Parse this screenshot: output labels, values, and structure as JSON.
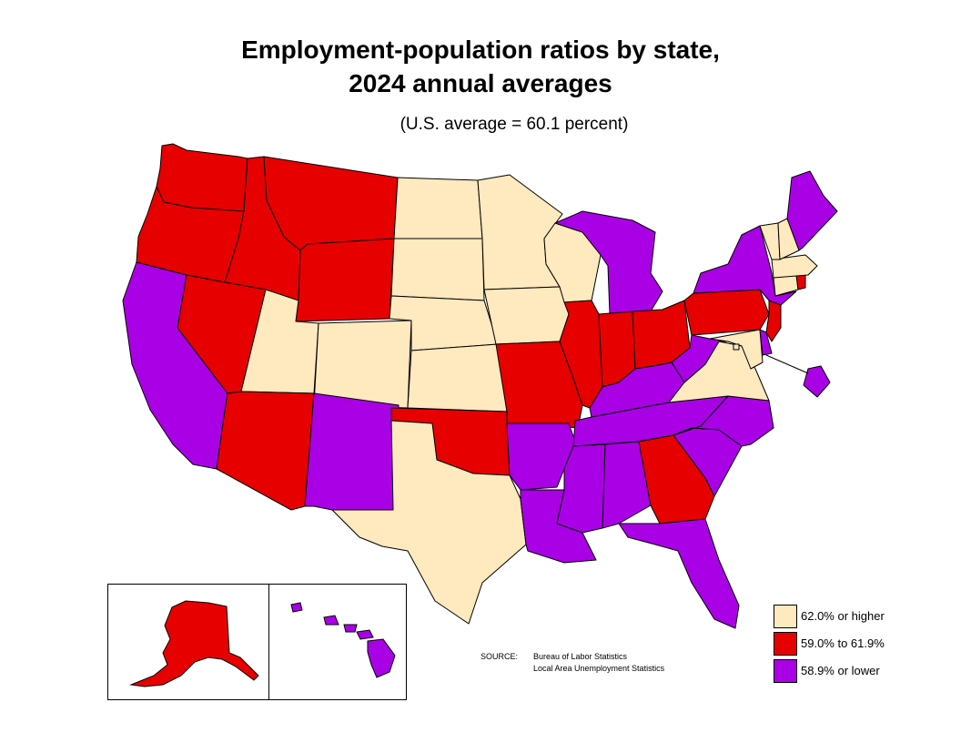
{
  "title_line1": "Employment-population ratios by state,",
  "title_line2": "2024 annual averages",
  "subtitle": "(U.S. average = 60.1 percent)",
  "colors": {
    "high": "#FFE9BE",
    "mid": "#E60000",
    "low": "#A900E6"
  },
  "legend": [
    {
      "label": "62.0% or higher",
      "category": "high"
    },
    {
      "label": "59.0% to 61.9%",
      "category": "mid"
    },
    {
      "label": "58.9% or lower",
      "category": "low"
    }
  ],
  "source": {
    "label": "SOURCE:",
    "line1": "Bureau of Labor Statistics",
    "line2": "Local Area Unemployment Statistics"
  },
  "states": {
    "WA": "mid",
    "OR": "mid",
    "CA": "low",
    "ID": "mid",
    "NV": "mid",
    "MT": "mid",
    "WY": "mid",
    "UT": "high",
    "AZ": "mid",
    "CO": "high",
    "NM": "low",
    "ND": "high",
    "SD": "high",
    "NE": "high",
    "KS": "high",
    "OK": "mid",
    "TX": "high",
    "MN": "high",
    "IA": "high",
    "MO": "mid",
    "AR": "low",
    "LA": "low",
    "WI": "high",
    "IL": "mid",
    "MI": "low",
    "IN": "mid",
    "OH": "mid",
    "KY": "low",
    "TN": "low",
    "MS": "low",
    "AL": "low",
    "GA": "mid",
    "FL": "low",
    "SC": "low",
    "NC": "low",
    "VA": "high",
    "WV": "low",
    "PA": "mid",
    "NY": "low",
    "VT": "high",
    "NH": "high",
    "ME": "low",
    "MA": "high",
    "RI": "mid",
    "CT": "high",
    "NJ": "mid",
    "DE": "low",
    "MD": "high",
    "DC": "high",
    "AK": "mid",
    "HI": "low"
  }
}
